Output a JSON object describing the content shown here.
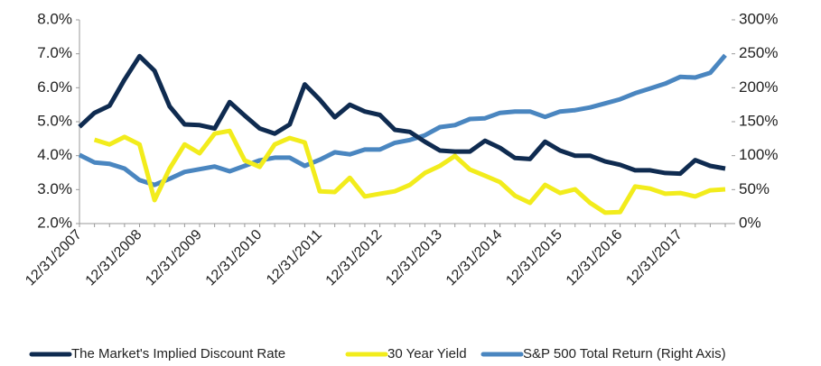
{
  "chart_data": {
    "type": "line",
    "categories": [
      "12/31/2007",
      null,
      null,
      null,
      "12/31/2008",
      null,
      null,
      null,
      "12/31/2009",
      null,
      null,
      null,
      "12/31/2010",
      null,
      null,
      null,
      "12/31/2011",
      null,
      null,
      null,
      "12/31/2012",
      null,
      null,
      null,
      "12/31/2013",
      null,
      null,
      null,
      "12/31/2014",
      null,
      null,
      null,
      "12/31/2015",
      null,
      null,
      null,
      "12/31/2016",
      null,
      null,
      null,
      "12/31/2017",
      null,
      null,
      null
    ],
    "series": [
      {
        "name": "The Market's Implied Discount Rate",
        "color": "#0f2b50",
        "values": [
          4.85,
          5.26,
          5.47,
          6.24,
          6.93,
          6.5,
          5.45,
          4.92,
          4.9,
          4.8,
          5.58,
          5.18,
          4.8,
          4.65,
          4.92,
          6.1,
          5.65,
          5.13,
          5.5,
          5.3,
          5.2,
          4.76,
          4.7,
          4.41,
          4.15,
          4.12,
          4.12,
          4.44,
          4.23,
          3.93,
          3.9,
          4.41,
          4.15,
          4.0,
          4.0,
          3.83,
          3.73,
          3.57,
          3.57,
          3.49,
          3.47,
          3.87,
          3.7,
          3.62
        ]
      },
      {
        "name": "30 Year Yield",
        "color": "#f2ec1c",
        "values": [
          null,
          4.47,
          4.33,
          4.55,
          4.33,
          2.69,
          3.62,
          4.33,
          4.07,
          4.65,
          4.73,
          3.86,
          3.67,
          4.33,
          4.52,
          4.39,
          2.95,
          2.93,
          3.35,
          2.8,
          2.88,
          2.95,
          3.14,
          3.49,
          3.7,
          3.99,
          3.59,
          3.41,
          3.22,
          2.82,
          2.61,
          3.14,
          2.9,
          3.01,
          2.61,
          2.32,
          2.34,
          3.09,
          3.03,
          2.88,
          2.9,
          2.8,
          2.98,
          3.01
        ]
      },
      {
        "name": "S&P 500 Total Return (Right Axis)",
        "color": "#4a86c0",
        "axis": "y2",
        "values": [
          101,
          90,
          88,
          81,
          64,
          57,
          66,
          76,
          80,
          84,
          77,
          85,
          93,
          97,
          97,
          85,
          94,
          105,
          102,
          109,
          109,
          119,
          123,
          130,
          142,
          145,
          154,
          155,
          163,
          165,
          165,
          157,
          165,
          167,
          171,
          177,
          183,
          192,
          199,
          206,
          216,
          215,
          222,
          248
        ]
      }
    ],
    "ylim": [
      2,
      8
    ],
    "yticks": [
      {
        "value": 2,
        "label": "2.0%"
      },
      {
        "value": 3,
        "label": "3.0%"
      },
      {
        "value": 4,
        "label": "4.0%"
      },
      {
        "value": 5,
        "label": "5.0%"
      },
      {
        "value": 6,
        "label": "6.0%"
      },
      {
        "value": 7,
        "label": "7.0%"
      },
      {
        "value": 8,
        "label": "8.0%"
      }
    ],
    "y2lim": [
      0,
      300
    ],
    "y2ticks": [
      {
        "value": 0,
        "label": "0%"
      },
      {
        "value": 50,
        "label": "50%"
      },
      {
        "value": 100,
        "label": "100%"
      },
      {
        "value": 150,
        "label": "150%"
      },
      {
        "value": 200,
        "label": "200%"
      },
      {
        "value": 250,
        "label": "250%"
      },
      {
        "value": 300,
        "label": "300%"
      }
    ],
    "grid": false,
    "legend": "bottom"
  }
}
